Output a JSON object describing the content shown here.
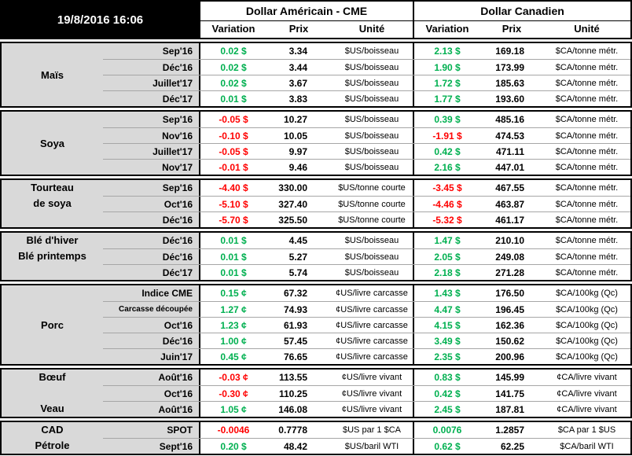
{
  "meta": {
    "timestamp": "19/8/2016 16:06"
  },
  "header": {
    "us_title": "Dollar Américain - CME",
    "ca_title": "Dollar Canadien",
    "columns": {
      "variation": "Variation",
      "prix": "Prix",
      "unite": "Unité"
    }
  },
  "colors": {
    "positive": "#00B050",
    "negative": "#FF0000",
    "label_bg": "#D9D9D9",
    "header_bg": "#000000",
    "grid_line": "#A6A6A6"
  },
  "groups": [
    {
      "id": "mais",
      "labels": [
        {
          "text": "Maïs",
          "placement": "center"
        }
      ],
      "rows": [
        {
          "month": "Sep'16",
          "us": {
            "variation": "0.02 $",
            "trend": "up",
            "prix": "3.34",
            "unite": "$US/boisseau"
          },
          "ca": {
            "variation": "2.13 $",
            "trend": "up",
            "prix": "169.18",
            "unite": "$CA/tonne métr."
          }
        },
        {
          "month": "Déc'16",
          "us": {
            "variation": "0.02 $",
            "trend": "up",
            "prix": "3.44",
            "unite": "$US/boisseau"
          },
          "ca": {
            "variation": "1.90 $",
            "trend": "up",
            "prix": "173.99",
            "unite": "$CA/tonne métr."
          }
        },
        {
          "month": "Juillet'17",
          "us": {
            "variation": "0.02 $",
            "trend": "up",
            "prix": "3.67",
            "unite": "$US/boisseau"
          },
          "ca": {
            "variation": "1.72 $",
            "trend": "up",
            "prix": "185.63",
            "unite": "$CA/tonne métr."
          }
        },
        {
          "month": "Déc'17",
          "us": {
            "variation": "0.01 $",
            "trend": "up",
            "prix": "3.83",
            "unite": "$US/boisseau"
          },
          "ca": {
            "variation": "1.77 $",
            "trend": "up",
            "prix": "193.60",
            "unite": "$CA/tonne métr."
          }
        }
      ]
    },
    {
      "id": "soya",
      "labels": [
        {
          "text": "Soya",
          "placement": "center"
        }
      ],
      "rows": [
        {
          "month": "Sep'16",
          "us": {
            "variation": "-0.05 $",
            "trend": "down",
            "prix": "10.27",
            "unite": "$US/boisseau"
          },
          "ca": {
            "variation": "0.39 $",
            "trend": "up",
            "prix": "485.16",
            "unite": "$CA/tonne métr."
          }
        },
        {
          "month": "Nov'16",
          "us": {
            "variation": "-0.10 $",
            "trend": "down",
            "prix": "10.05",
            "unite": "$US/boisseau"
          },
          "ca": {
            "variation": "-1.91 $",
            "trend": "down",
            "prix": "474.53",
            "unite": "$CA/tonne métr."
          }
        },
        {
          "month": "Juillet'17",
          "us": {
            "variation": "-0.05 $",
            "trend": "down",
            "prix": "9.97",
            "unite": "$US/boisseau"
          },
          "ca": {
            "variation": "0.42 $",
            "trend": "up",
            "prix": "471.11",
            "unite": "$CA/tonne métr."
          }
        },
        {
          "month": "Nov'17",
          "us": {
            "variation": "-0.01 $",
            "trend": "down",
            "prix": "9.46",
            "unite": "$US/boisseau"
          },
          "ca": {
            "variation": "2.16 $",
            "trend": "up",
            "prix": "447.01",
            "unite": "$CA/tonne métr."
          }
        }
      ]
    },
    {
      "id": "tourteau-de-soya",
      "labels": [
        {
          "text": "Tourteau",
          "row": 0
        },
        {
          "text": "de soya",
          "row": 1
        }
      ],
      "rows": [
        {
          "month": "Sep'16",
          "us": {
            "variation": "-4.40 $",
            "trend": "down",
            "prix": "330.00",
            "unite": "$US/tonne courte"
          },
          "ca": {
            "variation": "-3.45 $",
            "trend": "down",
            "prix": "467.55",
            "unite": "$CA/tonne métr."
          }
        },
        {
          "month": "Oct'16",
          "us": {
            "variation": "-5.10 $",
            "trend": "down",
            "prix": "327.40",
            "unite": "$US/tonne courte"
          },
          "ca": {
            "variation": "-4.46 $",
            "trend": "down",
            "prix": "463.87",
            "unite": "$CA/tonne métr."
          }
        },
        {
          "month": "Déc'16",
          "us": {
            "variation": "-5.70 $",
            "trend": "down",
            "prix": "325.50",
            "unite": "$US/tonne courte"
          },
          "ca": {
            "variation": "-5.32 $",
            "trend": "down",
            "prix": "461.17",
            "unite": "$CA/tonne métr."
          }
        }
      ]
    },
    {
      "id": "ble",
      "labels": [
        {
          "text": "Blé d'hiver",
          "row": 0
        },
        {
          "text": "Blé printemps",
          "row": 1
        }
      ],
      "rows": [
        {
          "month": "Déc'16",
          "us": {
            "variation": "0.01 $",
            "trend": "up",
            "prix": "4.45",
            "unite": "$US/boisseau"
          },
          "ca": {
            "variation": "1.47 $",
            "trend": "up",
            "prix": "210.10",
            "unite": "$CA/tonne métr."
          }
        },
        {
          "month": "Déc'16",
          "us": {
            "variation": "0.01 $",
            "trend": "up",
            "prix": "5.27",
            "unite": "$US/boisseau"
          },
          "ca": {
            "variation": "2.05 $",
            "trend": "up",
            "prix": "249.08",
            "unite": "$CA/tonne métr."
          }
        },
        {
          "month": "Déc'17",
          "us": {
            "variation": "0.01 $",
            "trend": "up",
            "prix": "5.74",
            "unite": "$US/boisseau"
          },
          "ca": {
            "variation": "2.18 $",
            "trend": "up",
            "prix": "271.28",
            "unite": "$CA/tonne métr."
          }
        }
      ]
    },
    {
      "id": "porc",
      "labels": [
        {
          "text": "Porc",
          "placement": "center"
        }
      ],
      "rows": [
        {
          "month": "Indice CME",
          "us": {
            "variation": "0.15 ¢",
            "trend": "up",
            "prix": "67.32",
            "unite": "¢US/livre carcasse"
          },
          "ca": {
            "variation": "1.43 $",
            "trend": "up",
            "prix": "176.50",
            "unite": "$CA/100kg (Qc)"
          }
        },
        {
          "month": "Carcasse découpée",
          "small": true,
          "us": {
            "variation": "1.27 ¢",
            "trend": "up",
            "prix": "74.93",
            "unite": "¢US/livre carcasse"
          },
          "ca": {
            "variation": "4.47 $",
            "trend": "up",
            "prix": "196.45",
            "unite": "$CA/100kg (Qc)"
          }
        },
        {
          "month": "Oct'16",
          "us": {
            "variation": "1.23 ¢",
            "trend": "up",
            "prix": "61.93",
            "unite": "¢US/livre carcasse"
          },
          "ca": {
            "variation": "4.15 $",
            "trend": "up",
            "prix": "162.36",
            "unite": "$CA/100kg (Qc)"
          }
        },
        {
          "month": "Déc'16",
          "us": {
            "variation": "1.00 ¢",
            "trend": "up",
            "prix": "57.45",
            "unite": "¢US/livre carcasse"
          },
          "ca": {
            "variation": "3.49 $",
            "trend": "up",
            "prix": "150.62",
            "unite": "$CA/100kg (Qc)"
          }
        },
        {
          "month": "Juin'17",
          "us": {
            "variation": "0.45 ¢",
            "trend": "up",
            "prix": "76.65",
            "unite": "¢US/livre carcasse"
          },
          "ca": {
            "variation": "2.35 $",
            "trend": "up",
            "prix": "200.96",
            "unite": "$CA/100kg (Qc)"
          }
        }
      ]
    },
    {
      "id": "boeuf-veau",
      "labels": [
        {
          "text": "Bœuf",
          "row": 0
        },
        {
          "text": "Veau",
          "row": 2
        }
      ],
      "rows": [
        {
          "month": "Août'16",
          "us": {
            "variation": "-0.03 ¢",
            "trend": "down",
            "prix": "113.55",
            "unite": "¢US/livre vivant"
          },
          "ca": {
            "variation": "0.83 $",
            "trend": "up",
            "prix": "145.99",
            "unite": "¢CA/livre vivant"
          }
        },
        {
          "month": "Oct'16",
          "us": {
            "variation": "-0.30 ¢",
            "trend": "down",
            "prix": "110.25",
            "unite": "¢US/livre vivant"
          },
          "ca": {
            "variation": "0.42 $",
            "trend": "up",
            "prix": "141.75",
            "unite": "¢CA/livre vivant"
          }
        },
        {
          "month": "Août'16",
          "us": {
            "variation": "1.05 ¢",
            "trend": "up",
            "prix": "146.08",
            "unite": "¢US/livre vivant"
          },
          "ca": {
            "variation": "2.45 $",
            "trend": "up",
            "prix": "187.81",
            "unite": "¢CA/livre vivant"
          }
        }
      ]
    },
    {
      "id": "cad-petrole",
      "labels": [
        {
          "text": "CAD",
          "row": 0
        },
        {
          "text": "Pétrole",
          "row": 1
        }
      ],
      "rows": [
        {
          "month": "SPOT",
          "us": {
            "variation": "-0.0046",
            "trend": "down",
            "prix": "0.7778",
            "unite": "$US par 1 $CA"
          },
          "ca": {
            "variation": "0.0076",
            "trend": "up",
            "prix": "1.2857",
            "unite": "$CA par 1 $US"
          }
        },
        {
          "month": "Sept'16",
          "us": {
            "variation": "0.20 $",
            "trend": "up",
            "prix": "48.42",
            "unite": "$US/baril WTI"
          },
          "ca": {
            "variation": "0.62 $",
            "trend": "up",
            "prix": "62.25",
            "unite": "$CA/baril WTI"
          }
        }
      ]
    }
  ]
}
